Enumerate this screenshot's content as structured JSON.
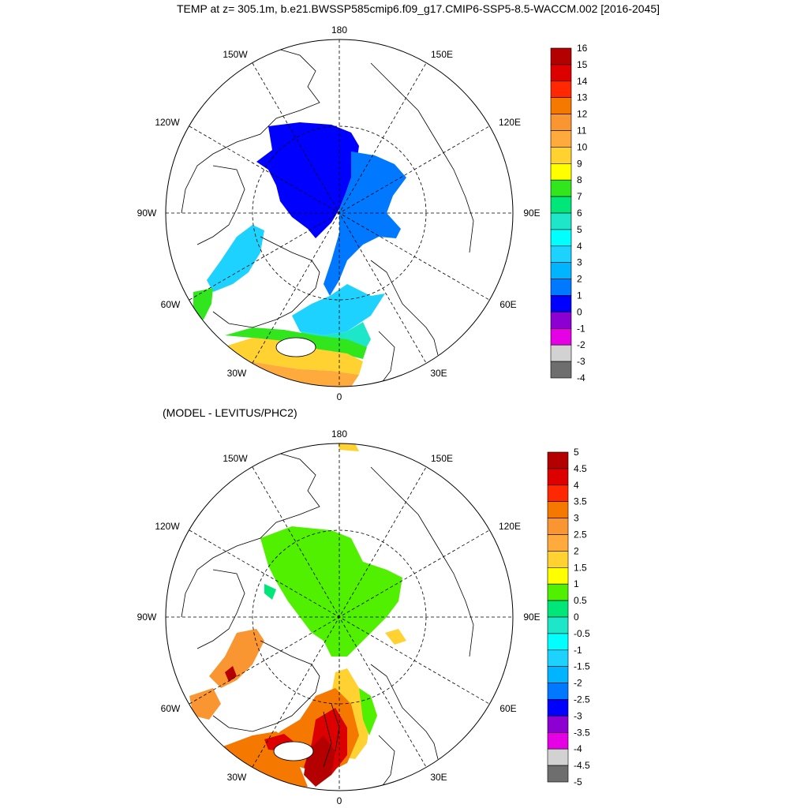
{
  "title": "TEMP at z= 305.1m, b.e21.BWSSP585cmip6.f09_g17.CMIP6-SSP5-8.5-WACCM.002 [2016-2045]",
  "subtitle": "(MODEL - LEVITUS/PHC2)",
  "longitude_labels": {
    "lon_180": "180",
    "lon_150w": "150W",
    "lon_150e": "150E",
    "lon_120w": "120W",
    "lon_120e": "120E",
    "lon_90w": "90W",
    "lon_90e": "90E",
    "lon_60w": "60W",
    "lon_60e": "60E",
    "lon_30w": "30W",
    "lon_30e": "30E",
    "lon_0": "0"
  },
  "top_colorbar": {
    "labels": [
      "16",
      "15",
      "14",
      "13",
      "12",
      "11",
      "10",
      "9",
      "8",
      "7",
      "6",
      "5",
      "4",
      "3",
      "2",
      "1",
      "0",
      "-1",
      "-2",
      "-3",
      "-4"
    ],
    "colors": [
      "#b40000",
      "#dc0000",
      "#ff2800",
      "#f57800",
      "#fa9632",
      "#ffaa3c",
      "#ffd232",
      "#ffff00",
      "#32e61e",
      "#00e678",
      "#1ee6c8",
      "#00ffff",
      "#1ed2ff",
      "#00b4ff",
      "#0078ff",
      "#0000ff",
      "#8c00d2",
      "#e600e6",
      "#d2d2d2",
      "#6e6e6e"
    ]
  },
  "bottom_colorbar": {
    "labels": [
      "5",
      "4.5",
      "4",
      "3.5",
      "3",
      "2.5",
      "2",
      "1.5",
      "1",
      "0.5",
      "0",
      "-0.5",
      "-1",
      "-1.5",
      "-2",
      "-2.5",
      "-3",
      "-3.5",
      "-4",
      "-4.5",
      "-5"
    ],
    "colors": [
      "#b40000",
      "#dc0000",
      "#ff2800",
      "#f57800",
      "#fa9632",
      "#ffaa3c",
      "#ffd232",
      "#ffff00",
      "#50f000",
      "#00e678",
      "#1ee6c8",
      "#00ffff",
      "#1ed2ff",
      "#00b4ff",
      "#0078ff",
      "#0000ff",
      "#8c00d2",
      "#e600e6",
      "#d2d2d2",
      "#6e6e6e"
    ]
  }
}
